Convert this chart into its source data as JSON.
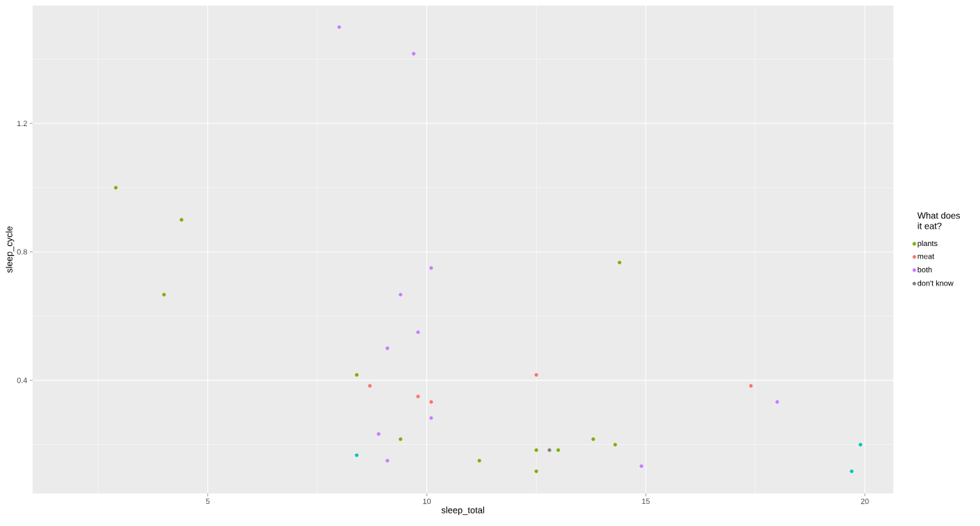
{
  "chart_data": {
    "type": "scatter",
    "xlabel": "sleep_total",
    "ylabel": "sleep_cycle",
    "legend_title": "What does it eat?",
    "xlim": [
      1.0,
      20.65
    ],
    "ylim": [
      0.048,
      1.567
    ],
    "xticks": [
      5,
      10,
      15,
      20
    ],
    "yticks": [
      0.4,
      0.8,
      1.2
    ],
    "grid": true,
    "legend": "right",
    "marker": "circle",
    "series": [
      {
        "name": "plants",
        "color": "#7cae00",
        "x": [
          2.9,
          4.4,
          4.0,
          8.4,
          9.4,
          11.2,
          12.5,
          12.5,
          13.0,
          13.8,
          14.3,
          14.4
        ],
        "values": [
          1.0,
          0.9,
          0.667,
          0.417,
          0.217,
          0.15,
          0.183,
          0.117,
          0.183,
          0.217,
          0.2,
          0.767
        ]
      },
      {
        "name": "meat",
        "color": "#f8766d",
        "x": [
          8.7,
          9.8,
          10.1,
          12.5,
          17.4
        ],
        "values": [
          0.383,
          0.35,
          0.333,
          0.417,
          0.383
        ]
      },
      {
        "name": "both",
        "color": "#c77cff",
        "x": [
          8.0,
          9.7,
          10.1,
          9.4,
          9.8,
          9.1,
          10.1,
          8.9,
          9.1,
          14.9,
          18.0
        ],
        "values": [
          1.5,
          1.417,
          0.75,
          0.667,
          0.55,
          0.5,
          0.283,
          0.233,
          0.15,
          0.133,
          0.333
        ]
      },
      {
        "name": "don't know",
        "color": "#7f7f7f",
        "x": [
          12.8
        ],
        "values": [
          0.183
        ]
      },
      {
        "color": "#00bfc4",
        "x": [
          8.4,
          19.7,
          19.9
        ],
        "values": [
          0.167,
          0.117,
          0.2
        ]
      }
    ]
  }
}
